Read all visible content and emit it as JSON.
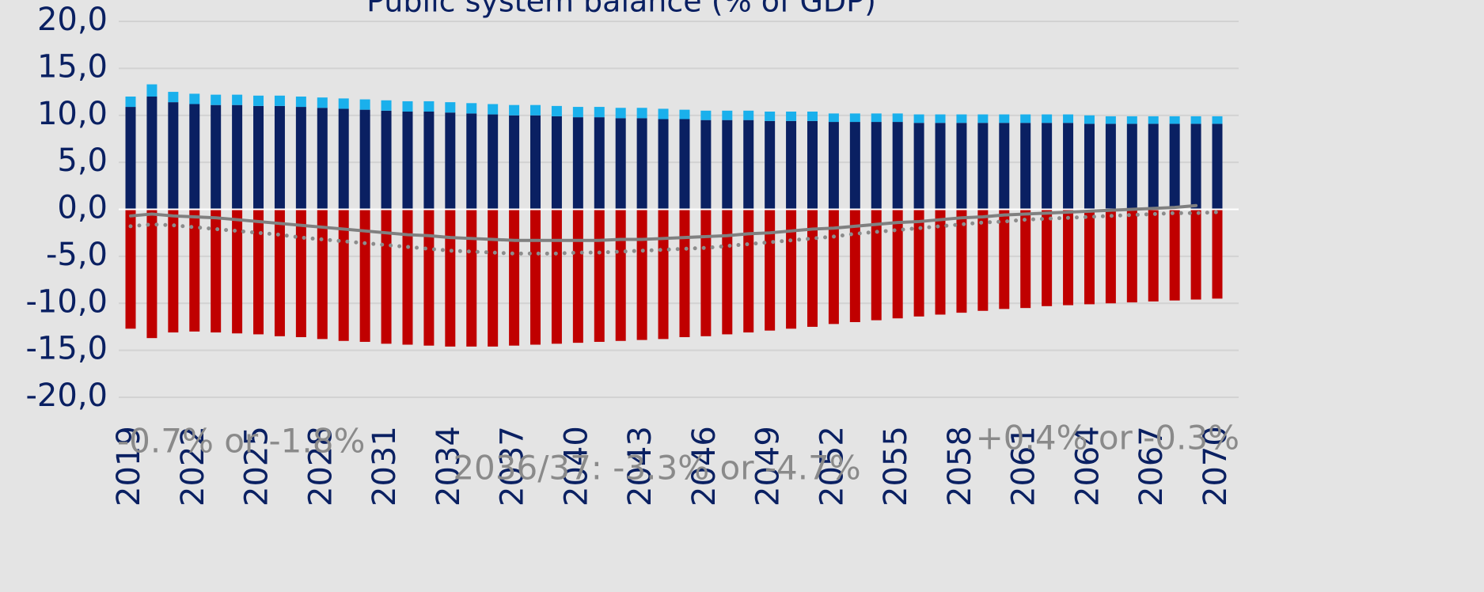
{
  "chart_data": {
    "type": "bar",
    "title": "Public system balance (% of GDP)",
    "categories": [
      "2019",
      null,
      null,
      "2022",
      null,
      null,
      "2025",
      null,
      null,
      "2028",
      null,
      null,
      "2031",
      null,
      null,
      "2034",
      null,
      null,
      "2037",
      null,
      null,
      "2040",
      null,
      null,
      "2043",
      null,
      null,
      "2046",
      null,
      null,
      "2049",
      null,
      null,
      "2052",
      null,
      null,
      "2055",
      null,
      null,
      "2058",
      null,
      null,
      "2061",
      null,
      null,
      "2064",
      null,
      null,
      "2067",
      null,
      null,
      "2070"
    ],
    "series": [
      {
        "type": "bar",
        "color": "#0a2062",
        "values": [
          10.9,
          12.0,
          11.4,
          11.2,
          11.1,
          11.1,
          11.0,
          11.0,
          10.9,
          10.8,
          10.7,
          10.6,
          10.5,
          10.4,
          10.4,
          10.3,
          10.2,
          10.1,
          10.0,
          10.0,
          9.9,
          9.8,
          9.8,
          9.7,
          9.7,
          9.6,
          9.6,
          9.5,
          9.5,
          9.5,
          9.4,
          9.4,
          9.4,
          9.3,
          9.3,
          9.3,
          9.3,
          9.2,
          9.2,
          9.2,
          9.2,
          9.2,
          9.2,
          9.2,
          9.2,
          9.1,
          9.1,
          9.1,
          9.1,
          9.1,
          9.1,
          9.1
        ]
      },
      {
        "type": "bar",
        "color": "#1ab0ec",
        "values": [
          1.1,
          1.3,
          1.1,
          1.1,
          1.1,
          1.1,
          1.1,
          1.1,
          1.1,
          1.1,
          1.1,
          1.1,
          1.1,
          1.1,
          1.1,
          1.1,
          1.1,
          1.1,
          1.1,
          1.1,
          1.1,
          1.1,
          1.1,
          1.1,
          1.1,
          1.1,
          1.0,
          1.0,
          1.0,
          1.0,
          1.0,
          1.0,
          1.0,
          0.9,
          0.9,
          0.9,
          0.9,
          0.9,
          0.9,
          0.9,
          0.9,
          0.9,
          0.9,
          0.9,
          0.9,
          0.9,
          0.8,
          0.8,
          0.8,
          0.8,
          0.8,
          0.8
        ]
      },
      {
        "type": "bar",
        "color": "#c00000",
        "values": [
          -12.7,
          -13.7,
          -13.1,
          -13.0,
          -13.1,
          -13.2,
          -13.3,
          -13.5,
          -13.6,
          -13.8,
          -14.0,
          -14.1,
          -14.3,
          -14.4,
          -14.5,
          -14.6,
          -14.6,
          -14.6,
          -14.5,
          -14.4,
          -14.3,
          -14.2,
          -14.1,
          -14.0,
          -13.9,
          -13.8,
          -13.6,
          -13.5,
          -13.3,
          -13.1,
          -12.9,
          -12.7,
          -12.5,
          -12.2,
          -12.0,
          -11.8,
          -11.6,
          -11.4,
          -11.2,
          -11.0,
          -10.8,
          -10.6,
          -10.5,
          -10.3,
          -10.2,
          -10.1,
          -10.0,
          -9.9,
          -9.8,
          -9.7,
          -9.6,
          -9.5
        ]
      },
      {
        "type": "line",
        "style": "solid",
        "color": "#808080",
        "values": [
          -0.7,
          -0.5,
          -0.7,
          -0.8,
          -0.9,
          -1.1,
          -1.3,
          -1.5,
          -1.7,
          -1.9,
          -2.1,
          -2.3,
          -2.5,
          -2.7,
          -2.8,
          -3.0,
          -3.1,
          -3.2,
          -3.3,
          -3.3,
          -3.3,
          -3.3,
          -3.3,
          -3.2,
          -3.2,
          -3.1,
          -3.0,
          -2.9,
          -2.8,
          -2.6,
          -2.5,
          -2.3,
          -2.1,
          -2.0,
          -1.8,
          -1.6,
          -1.4,
          -1.3,
          -1.1,
          -0.9,
          -0.8,
          -0.6,
          -0.5,
          -0.4,
          -0.3,
          -0.2,
          -0.1,
          0.0,
          0.1,
          0.2,
          0.4,
          null
        ]
      },
      {
        "type": "line",
        "style": "dotted",
        "color": "#8c8c8c",
        "values": [
          -1.8,
          -1.6,
          -1.7,
          -1.9,
          -2.1,
          -2.3,
          -2.5,
          -2.7,
          -3.0,
          -3.2,
          -3.4,
          -3.6,
          -3.8,
          -4.0,
          -4.2,
          -4.4,
          -4.5,
          -4.6,
          -4.7,
          -4.7,
          -4.7,
          -4.6,
          -4.6,
          -4.5,
          -4.4,
          -4.3,
          -4.2,
          -4.1,
          -3.9,
          -3.7,
          -3.5,
          -3.3,
          -3.1,
          -2.9,
          -2.6,
          -2.4,
          -2.2,
          -2.0,
          -1.8,
          -1.6,
          -1.4,
          -1.3,
          -1.1,
          -1.0,
          -0.9,
          -0.8,
          -0.7,
          -0.6,
          -0.5,
          -0.4,
          -0.4,
          -0.3
        ]
      }
    ],
    "ylim": [
      -20,
      20
    ],
    "yticks": [
      {
        "value": 20,
        "label": "20,0"
      },
      {
        "value": 15,
        "label": "15,0"
      },
      {
        "value": 10,
        "label": "10,0"
      },
      {
        "value": 5,
        "label": "5,0"
      },
      {
        "value": 0,
        "label": "0,0"
      },
      {
        "value": -5,
        "label": "-5,0"
      },
      {
        "value": -10,
        "label": "-10,0"
      },
      {
        "value": -15,
        "label": "-15,0"
      },
      {
        "value": -20,
        "label": "-20,0"
      }
    ],
    "grid": true,
    "annotations": [
      "-0.7% or -1.8%",
      "2036/37: -3.3% or -4.7%",
      "+0.4% or -0.3%"
    ]
  }
}
